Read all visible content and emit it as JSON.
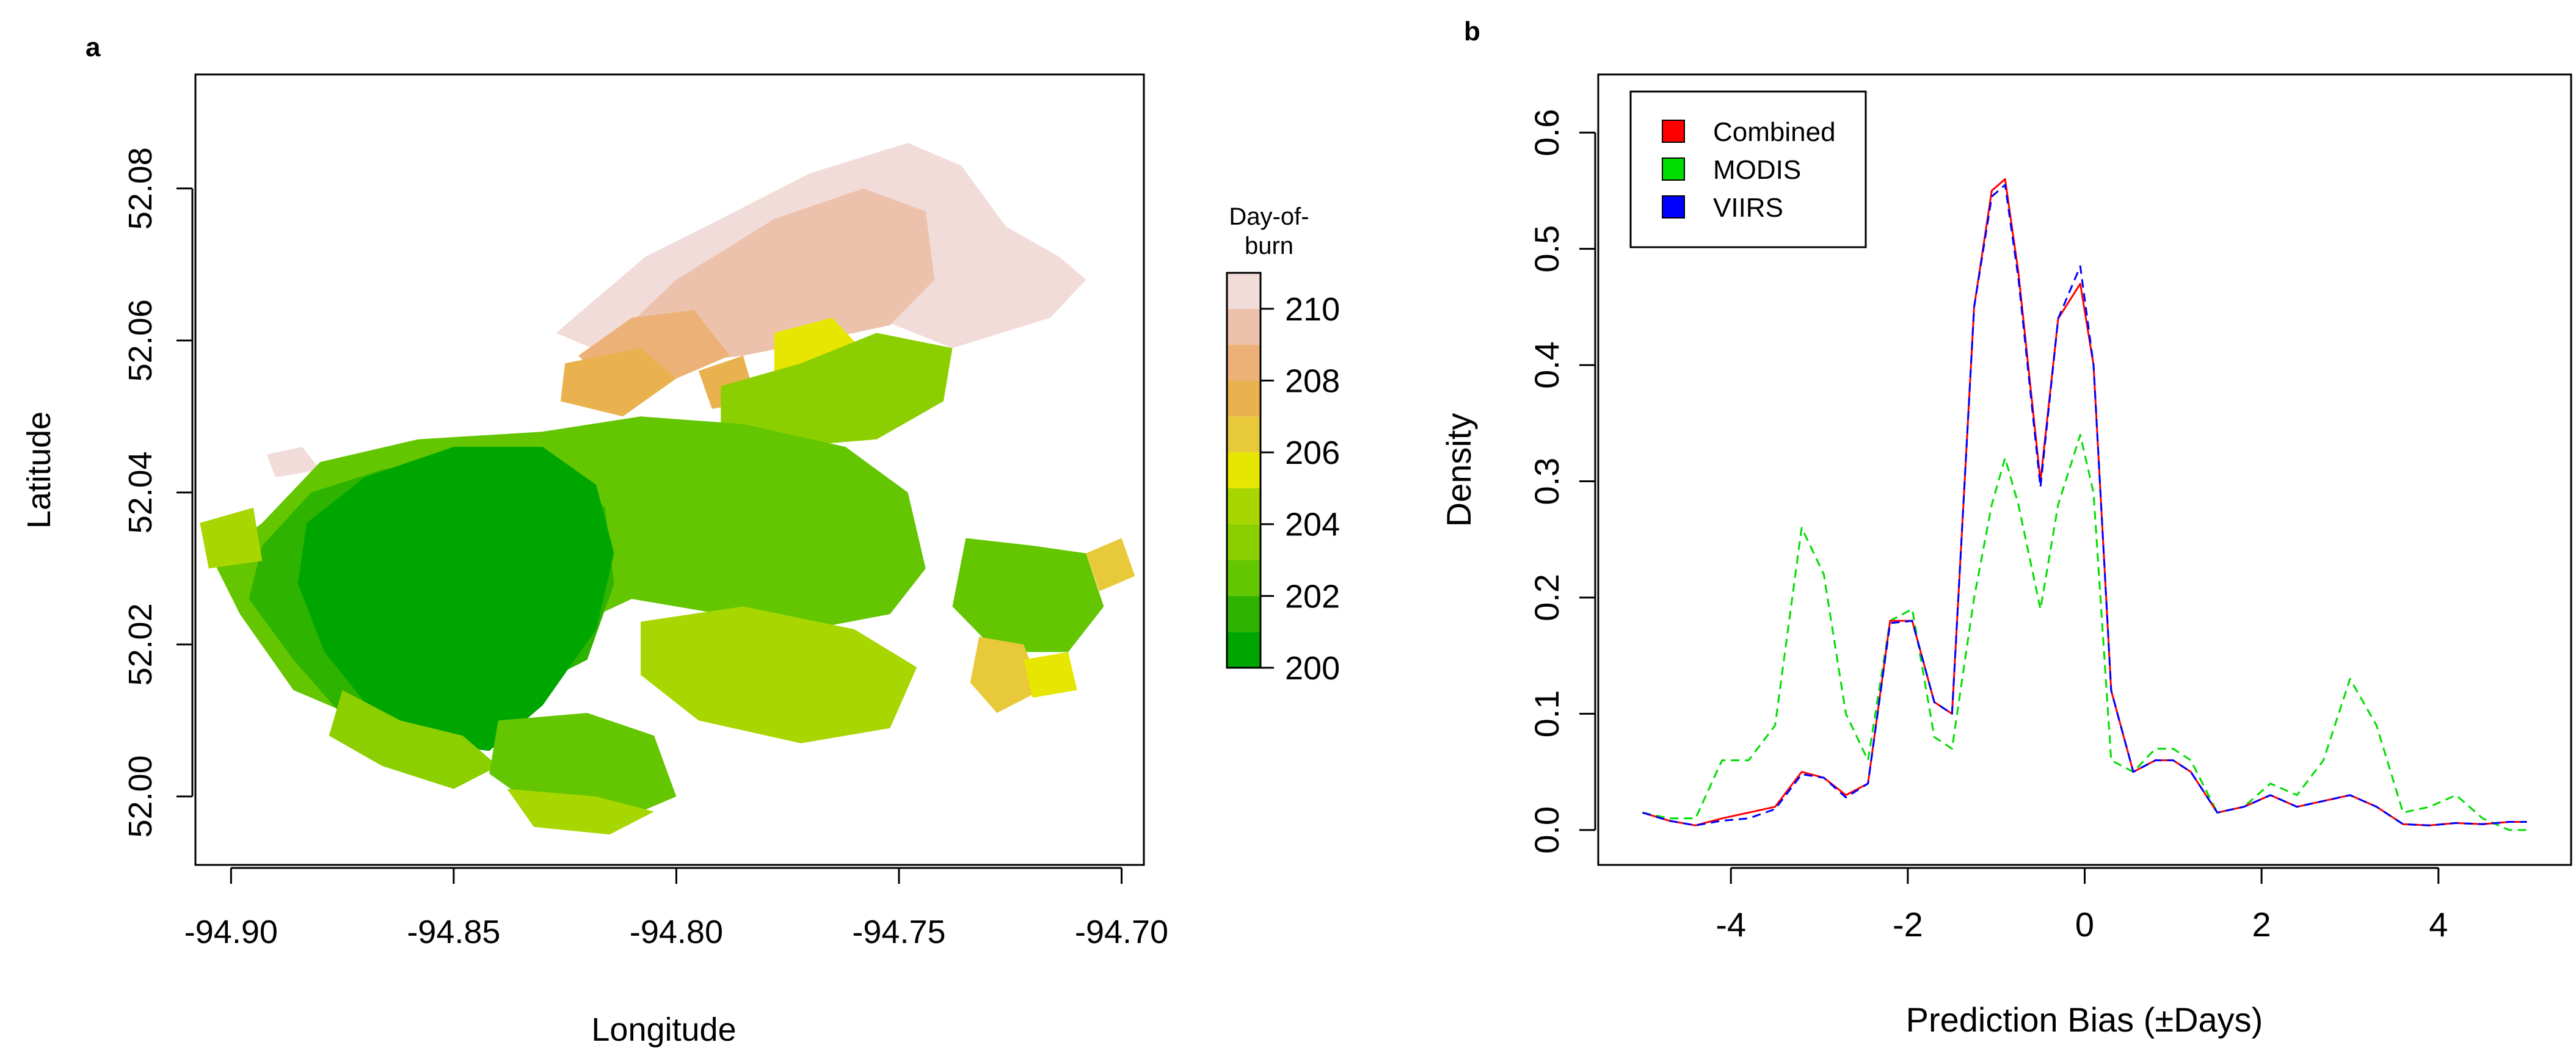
{
  "chart_data": [
    {
      "type": "heatmap",
      "panel_label": "a",
      "title": "",
      "xlabel": "Longitude",
      "ylabel": "Latitude",
      "xlim": [
        -94.908,
        -94.695
      ],
      "ylim": [
        51.991,
        52.095
      ],
      "x_ticks": [
        -94.9,
        -94.85,
        -94.8,
        -94.75,
        -94.7
      ],
      "x_tick_labels": [
        "-94.90",
        "-94.85",
        "-94.80",
        "-94.75",
        "-94.70"
      ],
      "y_ticks": [
        52.0,
        52.02,
        52.04,
        52.06,
        52.08
      ],
      "y_tick_labels": [
        "52.00",
        "52.02",
        "52.04",
        "52.06",
        "52.08"
      ],
      "colorbar": {
        "title_lines": [
          "Day-of-",
          "burn"
        ],
        "range": [
          200,
          211
        ],
        "ticks": [
          200,
          202,
          204,
          206,
          208,
          210
        ],
        "tick_labels": [
          "200",
          "202",
          "204",
          "206",
          "208",
          "210"
        ],
        "bands": [
          {
            "from": 200,
            "to": 201,
            "color": "#00a600"
          },
          {
            "from": 201,
            "to": 202,
            "color": "#2db300"
          },
          {
            "from": 202,
            "to": 203,
            "color": "#63c600"
          },
          {
            "from": 203,
            "to": 204,
            "color": "#8ccf00"
          },
          {
            "from": 204,
            "to": 205,
            "color": "#a8d600"
          },
          {
            "from": 205,
            "to": 206,
            "color": "#e6e600"
          },
          {
            "from": 206,
            "to": 207,
            "color": "#e8c93a"
          },
          {
            "from": 207,
            "to": 208,
            "color": "#e9b24f"
          },
          {
            "from": 208,
            "to": 209,
            "color": "#ecb176"
          },
          {
            "from": 209,
            "to": 210,
            "color": "#edc2ad"
          },
          {
            "from": 210,
            "to": 211,
            "color": "#f2dcd9"
          }
        ]
      },
      "regions": [
        {
          "day": 210.5,
          "points": [
            [
              -94.827,
              52.061
            ],
            [
              -94.807,
              52.071
            ],
            [
              -94.79,
              52.076
            ],
            [
              -94.77,
              52.082
            ],
            [
              -94.748,
              52.086
            ],
            [
              -94.736,
              52.083
            ],
            [
              -94.726,
              52.075
            ],
            [
              -94.714,
              52.071
            ],
            [
              -94.708,
              52.068
            ],
            [
              -94.716,
              52.063
            ],
            [
              -94.738,
              52.059
            ],
            [
              -94.755,
              52.063
            ],
            [
              -94.775,
              52.066
            ],
            [
              -94.798,
              52.064
            ],
            [
              -94.815,
              52.058
            ]
          ]
        },
        {
          "day": 209.5,
          "points": [
            [
              -94.818,
              52.058
            ],
            [
              -94.8,
              52.068
            ],
            [
              -94.778,
              52.076
            ],
            [
              -94.758,
              52.08
            ],
            [
              -94.744,
              52.077
            ],
            [
              -94.742,
              52.068
            ],
            [
              -94.752,
              52.062
            ],
            [
              -94.768,
              52.06
            ],
            [
              -94.785,
              52.058
            ],
            [
              -94.8,
              52.057
            ]
          ]
        },
        {
          "day": 208.5,
          "points": [
            [
              -94.822,
              52.058
            ],
            [
              -94.81,
              52.063
            ],
            [
              -94.796,
              52.064
            ],
            [
              -94.788,
              52.058
            ],
            [
              -94.8,
              52.055
            ],
            [
              -94.815,
              52.054
            ]
          ]
        },
        {
          "day": 210.5,
          "points": [
            [
              -94.892,
              52.045
            ],
            [
              -94.884,
              52.046
            ],
            [
              -94.88,
              52.043
            ],
            [
              -94.89,
              52.042
            ]
          ]
        },
        {
          "day": 207.5,
          "points": [
            [
              -94.825,
              52.057
            ],
            [
              -94.808,
              52.059
            ],
            [
              -94.8,
              52.055
            ],
            [
              -94.812,
              52.05
            ],
            [
              -94.826,
              52.052
            ]
          ]
        },
        {
          "day": 207.5,
          "points": [
            [
              -94.795,
              52.056
            ],
            [
              -94.785,
              52.058
            ],
            [
              -94.782,
              52.052
            ],
            [
              -94.792,
              52.051
            ]
          ]
        },
        {
          "day": 205.5,
          "points": [
            [
              -94.778,
              52.061
            ],
            [
              -94.765,
              52.063
            ],
            [
              -94.757,
              52.058
            ],
            [
              -94.768,
              52.053
            ],
            [
              -94.778,
              52.055
            ]
          ]
        },
        {
          "day": 203.5,
          "points": [
            [
              -94.79,
              52.054
            ],
            [
              -94.772,
              52.057
            ],
            [
              -94.755,
              52.061
            ],
            [
              -94.738,
              52.059
            ],
            [
              -94.74,
              52.052
            ],
            [
              -94.755,
              52.047
            ],
            [
              -94.775,
              52.046
            ],
            [
              -94.79,
              52.048
            ]
          ]
        },
        {
          "day": 202.5,
          "points": [
            [
              -94.893,
              52.036
            ],
            [
              -94.88,
              52.044
            ],
            [
              -94.858,
              52.047
            ],
            [
              -94.83,
              52.048
            ],
            [
              -94.808,
              52.05
            ],
            [
              -94.785,
              52.049
            ],
            [
              -94.762,
              52.046
            ],
            [
              -94.748,
              52.04
            ],
            [
              -94.744,
              52.03
            ],
            [
              -94.752,
              52.024
            ],
            [
              -94.77,
              52.022
            ],
            [
              -94.79,
              52.024
            ],
            [
              -94.81,
              52.026
            ],
            [
              -94.832,
              52.02
            ],
            [
              -94.852,
              52.014
            ],
            [
              -94.87,
              52.01
            ],
            [
              -94.886,
              52.014
            ],
            [
              -94.898,
              52.024
            ],
            [
              -94.904,
              52.031
            ]
          ]
        },
        {
          "day": 201.5,
          "points": [
            [
              -94.893,
              52.033
            ],
            [
              -94.882,
              52.04
            ],
            [
              -94.866,
              52.043
            ],
            [
              -94.848,
              52.045
            ],
            [
              -94.828,
              52.044
            ],
            [
              -94.816,
              52.038
            ],
            [
              -94.814,
              52.028
            ],
            [
              -94.82,
              52.018
            ],
            [
              -94.84,
              52.012
            ],
            [
              -94.858,
              52.008
            ],
            [
              -94.874,
              52.01
            ],
            [
              -94.886,
              52.018
            ],
            [
              -94.896,
              52.026
            ]
          ]
        },
        {
          "day": 200.5,
          "points": [
            [
              -94.883,
              52.036
            ],
            [
              -94.87,
              52.042
            ],
            [
              -94.85,
              52.046
            ],
            [
              -94.83,
              52.046
            ],
            [
              -94.818,
              52.041
            ],
            [
              -94.814,
              52.032
            ],
            [
              -94.818,
              52.022
            ],
            [
              -94.83,
              52.012
            ],
            [
              -94.842,
              52.006
            ],
            [
              -94.856,
              52.007
            ],
            [
              -94.868,
              52.011
            ],
            [
              -94.879,
              52.019
            ],
            [
              -94.885,
              52.028
            ]
          ]
        },
        {
          "day": 203.5,
          "points": [
            [
              -94.875,
              52.014
            ],
            [
              -94.862,
              52.01
            ],
            [
              -94.848,
              52.008
            ],
            [
              -94.84,
              52.004
            ],
            [
              -94.85,
              52.001
            ],
            [
              -94.866,
              52.004
            ],
            [
              -94.878,
              52.008
            ]
          ]
        },
        {
          "day": 202.5,
          "points": [
            [
              -94.84,
              52.01
            ],
            [
              -94.82,
              52.011
            ],
            [
              -94.805,
              52.008
            ],
            [
              -94.8,
              52.0
            ],
            [
              -94.812,
              51.997
            ],
            [
              -94.83,
              51.998
            ],
            [
              -94.842,
              52.003
            ]
          ]
        },
        {
          "day": 204.5,
          "points": [
            [
              -94.838,
              52.001
            ],
            [
              -94.818,
              52.0
            ],
            [
              -94.805,
              51.998
            ],
            [
              -94.815,
              51.995
            ],
            [
              -94.832,
              51.996
            ]
          ]
        },
        {
          "day": 204.5,
          "points": [
            [
              -94.808,
              52.023
            ],
            [
              -94.785,
              52.025
            ],
            [
              -94.76,
              52.022
            ],
            [
              -94.746,
              52.017
            ],
            [
              -94.752,
              52.009
            ],
            [
              -94.772,
              52.007
            ],
            [
              -94.795,
              52.01
            ],
            [
              -94.808,
              52.016
            ]
          ]
        },
        {
          "day": 202.5,
          "points": [
            [
              -94.735,
              52.034
            ],
            [
              -94.72,
              52.033
            ],
            [
              -94.708,
              52.032
            ],
            [
              -94.704,
              52.025
            ],
            [
              -94.712,
              52.019
            ],
            [
              -94.728,
              52.019
            ],
            [
              -94.738,
              52.025
            ]
          ]
        },
        {
          "day": 206.5,
          "points": [
            [
              -94.732,
              52.021
            ],
            [
              -94.722,
              52.02
            ],
            [
              -94.718,
              52.014
            ],
            [
              -94.728,
              52.011
            ],
            [
              -94.734,
              52.015
            ]
          ]
        },
        {
          "day": 205.5,
          "points": [
            [
              -94.722,
              52.018
            ],
            [
              -94.712,
              52.019
            ],
            [
              -94.71,
              52.014
            ],
            [
              -94.72,
              52.013
            ]
          ]
        },
        {
          "day": 206.5,
          "points": [
            [
              -94.708,
              52.032
            ],
            [
              -94.7,
              52.034
            ],
            [
              -94.697,
              52.029
            ],
            [
              -94.705,
              52.027
            ]
          ]
        },
        {
          "day": 204.5,
          "points": [
            [
              -94.907,
              52.036
            ],
            [
              -94.895,
              52.038
            ],
            [
              -94.893,
              52.031
            ],
            [
              -94.905,
              52.03
            ]
          ]
        }
      ]
    },
    {
      "type": "line",
      "panel_label": "b",
      "title": "",
      "xlabel": "Prediction Bias (±Days)",
      "ylabel": "Density",
      "xlim": [
        -5.5,
        5.5
      ],
      "ylim": [
        -0.03,
        0.65
      ],
      "x_ticks": [
        -4,
        -2,
        0,
        2,
        4
      ],
      "x_tick_labels": [
        "-4",
        "-2",
        "0",
        "2",
        "4"
      ],
      "y_ticks": [
        0.0,
        0.1,
        0.2,
        0.3,
        0.4,
        0.5,
        0.6
      ],
      "y_tick_labels": [
        "0.0",
        "0.1",
        "0.2",
        "0.3",
        "0.4",
        "0.5",
        "0.6"
      ],
      "legend": {
        "position": "top-left",
        "entries": [
          "Combined",
          "MODIS",
          "VIIRS"
        ]
      },
      "x": [
        -5.0,
        -4.7,
        -4.4,
        -4.1,
        -3.8,
        -3.5,
        -3.2,
        -2.95,
        -2.7,
        -2.45,
        -2.2,
        -1.95,
        -1.7,
        -1.5,
        -1.25,
        -1.05,
        -0.9,
        -0.75,
        -0.5,
        -0.3,
        -0.05,
        0.1,
        0.3,
        0.55,
        0.8,
        1.0,
        1.2,
        1.5,
        1.8,
        2.1,
        2.4,
        2.7,
        3.0,
        3.3,
        3.6,
        3.9,
        4.2,
        4.5,
        4.8,
        5.0
      ],
      "series": [
        {
          "name": "Combined",
          "color": "#ff0000",
          "dash": "solid",
          "values": [
            0.015,
            0.008,
            0.004,
            0.01,
            0.015,
            0.02,
            0.05,
            0.045,
            0.03,
            0.04,
            0.18,
            0.18,
            0.11,
            0.1,
            0.45,
            0.55,
            0.56,
            0.48,
            0.3,
            0.44,
            0.47,
            0.4,
            0.12,
            0.05,
            0.06,
            0.06,
            0.05,
            0.015,
            0.02,
            0.03,
            0.02,
            0.025,
            0.03,
            0.02,
            0.005,
            0.004,
            0.006,
            0.005,
            0.007,
            0.007
          ]
        },
        {
          "name": "MODIS",
          "color": "#00dd00",
          "dash": "dashed",
          "values": [
            0.015,
            0.01,
            0.01,
            0.06,
            0.06,
            0.09,
            0.26,
            0.22,
            0.1,
            0.06,
            0.18,
            0.19,
            0.08,
            0.07,
            0.2,
            0.28,
            0.32,
            0.28,
            0.19,
            0.28,
            0.34,
            0.29,
            0.06,
            0.05,
            0.07,
            0.07,
            0.06,
            0.015,
            0.02,
            0.04,
            0.03,
            0.06,
            0.13,
            0.09,
            0.015,
            0.02,
            0.03,
            0.01,
            0.0,
            0.0
          ]
        },
        {
          "name": "VIIRS",
          "color": "#0000ff",
          "dash": "dashed",
          "values": [
            0.015,
            0.008,
            0.004,
            0.008,
            0.01,
            0.018,
            0.048,
            0.045,
            0.028,
            0.04,
            0.178,
            0.18,
            0.11,
            0.1,
            0.45,
            0.545,
            0.555,
            0.475,
            0.295,
            0.44,
            0.485,
            0.4,
            0.12,
            0.05,
            0.06,
            0.06,
            0.05,
            0.015,
            0.02,
            0.03,
            0.02,
            0.025,
            0.03,
            0.02,
            0.005,
            0.004,
            0.006,
            0.005,
            0.007,
            0.007
          ]
        }
      ]
    }
  ]
}
